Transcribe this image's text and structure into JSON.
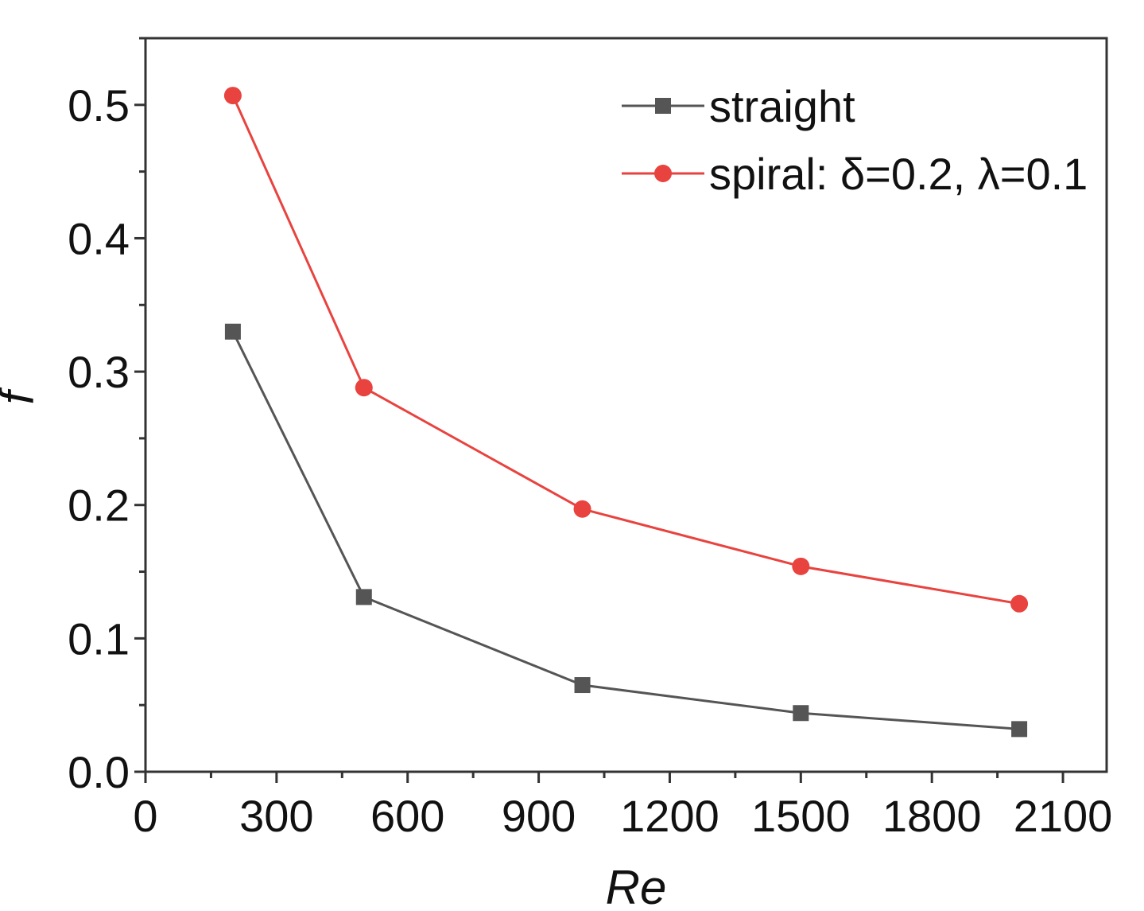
{
  "chart_data": {
    "type": "line",
    "title": "",
    "xlabel": "Re",
    "ylabel": "f",
    "xlim": [
      0,
      2200
    ],
    "ylim": [
      0,
      0.55
    ],
    "x_ticks": [
      0,
      300,
      600,
      900,
      1200,
      1500,
      1800,
      2100
    ],
    "y_ticks": [
      0.0,
      0.1,
      0.2,
      0.3,
      0.4,
      0.5
    ],
    "x_tick_labels": [
      "0",
      "300",
      "600",
      "900",
      "1200",
      "1500",
      "1800",
      "2100"
    ],
    "y_tick_labels": [
      "0.0",
      "0.1",
      "0.2",
      "0.3",
      "0.4",
      "0.5"
    ],
    "grid": false,
    "legend_position": "top-right",
    "series": [
      {
        "name": "straight",
        "color": "#555555",
        "marker": "square",
        "x": [
          200,
          500,
          1000,
          1500,
          2000
        ],
        "y": [
          0.33,
          0.131,
          0.065,
          0.044,
          0.032
        ]
      },
      {
        "name": "spiral: δ=0.2, λ=0.1",
        "color": "#e8433f",
        "marker": "circle",
        "x": [
          200,
          500,
          1000,
          1500,
          2000
        ],
        "y": [
          0.507,
          0.288,
          0.197,
          0.154,
          0.126
        ]
      }
    ]
  }
}
